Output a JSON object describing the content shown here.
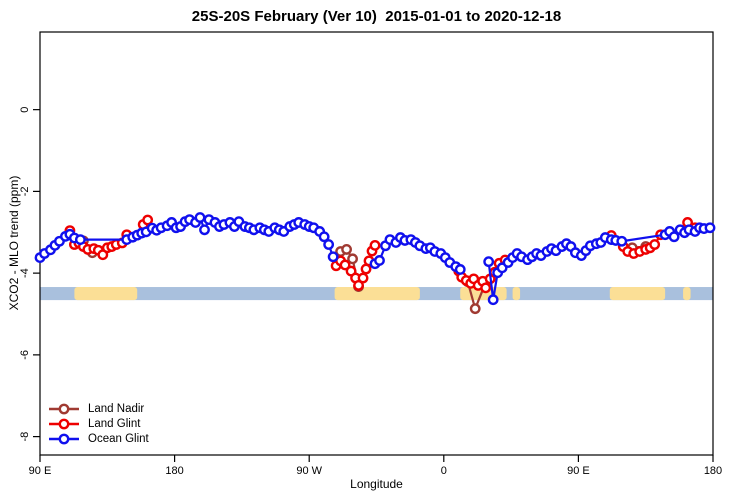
{
  "title": "25S-20S February (Ver 10)  2015-01-01 to 2020-12-18",
  "chart_data": {
    "type": "line",
    "title": "25S-20S February (Ver 10)  2015-01-01 to 2020-12-18",
    "xlabel": "Longitude",
    "ylabel": "XCO2 - MLO trend (ppm)",
    "grid": false,
    "legend_position": "bottom-left",
    "x_axis": {
      "range_deg": [
        0,
        450
      ],
      "ticks_deg": [
        0,
        90,
        180,
        270,
        360,
        450
      ],
      "tick_labels": [
        "90 E",
        "180",
        "90 W",
        "0",
        "90 E",
        "180"
      ],
      "note": "longitude axis starts at 90E and wraps eastward through 180, 90W, 0, 90E to 180"
    },
    "y_axis": {
      "range": [
        -8.45,
        1.9
      ],
      "ticks": [
        0,
        -2,
        -4,
        -6,
        -8
      ],
      "tick_labels": [
        "0",
        "-2",
        "-4",
        "-6",
        "-8"
      ]
    },
    "surface_band": {
      "y_top": -4.34,
      "y_bottom": -4.66,
      "ocean_color": "#a9c0dd",
      "land_color": "#fbdf96",
      "land_patches_deg": [
        [
          23,
          65
        ],
        [
          197,
          254
        ],
        [
          281,
          312
        ],
        [
          316,
          321
        ],
        [
          381,
          418
        ],
        [
          430,
          435
        ]
      ]
    },
    "series": [
      {
        "name": "Land Nadir",
        "color": "#a03a32",
        "segments": [
          [
            [
              29,
              -3.21
            ],
            [
              35,
              -3.5
            ]
          ],
          [
            [
              201,
              -3.47
            ],
            [
              205,
              -3.42
            ],
            [
              209,
              -3.65
            ],
            [
              213,
              -4.33
            ]
          ],
          [
            [
              286,
              -4.21
            ],
            [
              291,
              -4.87
            ],
            [
              298,
              -4.23
            ]
          ],
          [
            [
              396,
              -3.38
            ],
            [
              405,
              -3.35
            ]
          ]
        ]
      },
      {
        "name": "Land Glint",
        "color": "#ee0000",
        "segments": [
          [
            [
              20,
              -2.96
            ],
            [
              23,
              -3.3
            ],
            [
              26,
              -3.26
            ],
            [
              29,
              -3.35
            ],
            [
              32,
              -3.42
            ],
            [
              36,
              -3.4
            ],
            [
              39,
              -3.44
            ],
            [
              42,
              -3.55
            ],
            [
              45,
              -3.38
            ],
            [
              48,
              -3.35
            ],
            [
              51,
              -3.3
            ],
            [
              55,
              -3.26
            ],
            [
              58,
              -3.06
            ]
          ],
          [
            [
              69,
              -2.81
            ],
            [
              72,
              -2.7
            ]
          ],
          [
            [
              198,
              -3.82
            ],
            [
              201,
              -3.7
            ],
            [
              204,
              -3.8
            ],
            [
              208,
              -3.95
            ],
            [
              211,
              -4.12
            ],
            [
              213,
              -4.3
            ],
            [
              216,
              -4.12
            ],
            [
              218,
              -3.9
            ],
            [
              220,
              -3.7
            ],
            [
              222,
              -3.46
            ],
            [
              224,
              -3.32
            ]
          ],
          [
            [
              280,
              -3.95
            ],
            [
              282,
              -4.1
            ],
            [
              285,
              -4.18
            ],
            [
              288,
              -4.25
            ],
            [
              290,
              -4.14
            ],
            [
              293,
              -4.3
            ],
            [
              296,
              -4.2
            ],
            [
              298,
              -4.36
            ],
            [
              301,
              -4.14
            ],
            [
              304,
              -3.98
            ],
            [
              307,
              -3.76
            ],
            [
              311,
              -3.68
            ]
          ],
          [
            [
              382,
              -3.08
            ],
            [
              390,
              -3.35
            ],
            [
              393,
              -3.47
            ],
            [
              397,
              -3.52
            ],
            [
              401,
              -3.47
            ],
            [
              405,
              -3.42
            ],
            [
              408,
              -3.38
            ],
            [
              411,
              -3.3
            ],
            [
              415,
              -3.06
            ]
          ],
          [
            [
              433,
              -2.76
            ],
            [
              438,
              -2.89
            ]
          ]
        ]
      },
      {
        "name": "Ocean Glint",
        "color": "#1010ee",
        "segments": [
          [
            [
              0,
              -3.62
            ],
            [
              3,
              -3.52
            ],
            [
              7,
              -3.43
            ],
            [
              10,
              -3.32
            ],
            [
              13,
              -3.22
            ],
            [
              17,
              -3.1
            ],
            [
              20,
              -3.05
            ],
            [
              23,
              -3.14
            ],
            [
              27,
              -3.18
            ],
            [
              58,
              -3.18
            ],
            [
              62,
              -3.12
            ],
            [
              65,
              -3.07
            ],
            [
              68,
              -3.02
            ],
            [
              71,
              -2.99
            ],
            [
              75,
              -2.9
            ],
            [
              78,
              -2.95
            ],
            [
              81,
              -2.89
            ],
            [
              85,
              -2.84
            ],
            [
              88,
              -2.76
            ],
            [
              91,
              -2.89
            ],
            [
              94,
              -2.86
            ],
            [
              97,
              -2.74
            ],
            [
              100,
              -2.69
            ],
            [
              104,
              -2.76
            ],
            [
              107,
              -2.64
            ],
            [
              110,
              -2.94
            ],
            [
              113,
              -2.69
            ],
            [
              117,
              -2.76
            ],
            [
              120,
              -2.86
            ],
            [
              123,
              -2.81
            ],
            [
              127,
              -2.76
            ],
            [
              130,
              -2.86
            ],
            [
              133,
              -2.74
            ],
            [
              137,
              -2.86
            ],
            [
              140,
              -2.89
            ],
            [
              143,
              -2.94
            ],
            [
              147,
              -2.89
            ],
            [
              150,
              -2.94
            ],
            [
              153,
              -2.98
            ],
            [
              157,
              -2.89
            ],
            [
              160,
              -2.94
            ],
            [
              163,
              -2.98
            ],
            [
              167,
              -2.86
            ],
            [
              170,
              -2.81
            ],
            [
              173,
              -2.76
            ],
            [
              177,
              -2.81
            ],
            [
              180,
              -2.86
            ],
            [
              183,
              -2.89
            ],
            [
              187,
              -2.98
            ],
            [
              190,
              -3.11
            ],
            [
              193,
              -3.3
            ],
            [
              196,
              -3.6
            ]
          ],
          [
            [
              224,
              -3.77
            ],
            [
              227,
              -3.69
            ],
            [
              231,
              -3.33
            ],
            [
              234,
              -3.18
            ],
            [
              238,
              -3.25
            ],
            [
              241,
              -3.13
            ],
            [
              244,
              -3.2
            ],
            [
              248,
              -3.18
            ],
            [
              251,
              -3.25
            ],
            [
              254,
              -3.33
            ],
            [
              258,
              -3.4
            ],
            [
              261,
              -3.38
            ],
            [
              264,
              -3.47
            ],
            [
              268,
              -3.52
            ],
            [
              271,
              -3.62
            ],
            [
              274,
              -3.74
            ],
            [
              278,
              -3.84
            ],
            [
              281,
              -3.91
            ]
          ],
          [
            [
              300,
              -3.72
            ],
            [
              303,
              -4.65
            ],
            [
              306,
              -3.99
            ],
            [
              309,
              -3.87
            ],
            [
              313,
              -3.74
            ],
            [
              316,
              -3.62
            ],
            [
              319,
              -3.52
            ],
            [
              322,
              -3.6
            ],
            [
              326,
              -3.67
            ],
            [
              329,
              -3.6
            ],
            [
              332,
              -3.52
            ],
            [
              335,
              -3.57
            ],
            [
              339,
              -3.47
            ],
            [
              342,
              -3.4
            ],
            [
              345,
              -3.45
            ],
            [
              349,
              -3.35
            ],
            [
              352,
              -3.28
            ],
            [
              355,
              -3.35
            ],
            [
              358,
              -3.5
            ],
            [
              362,
              -3.57
            ],
            [
              365,
              -3.45
            ],
            [
              368,
              -3.33
            ],
            [
              372,
              -3.28
            ],
            [
              375,
              -3.25
            ],
            [
              378,
              -3.13
            ],
            [
              382,
              -3.18
            ],
            [
              385,
              -3.2
            ],
            [
              389,
              -3.22
            ],
            [
              418,
              -3.06
            ],
            [
              421,
              -2.98
            ],
            [
              424,
              -3.11
            ],
            [
              428,
              -2.94
            ],
            [
              431,
              -3.01
            ],
            [
              434,
              -2.94
            ],
            [
              438,
              -2.98
            ],
            [
              441,
              -2.89
            ],
            [
              444,
              -2.91
            ],
            [
              448,
              -2.89
            ]
          ]
        ]
      }
    ],
    "legend": [
      "Land Nadir",
      "Land Glint",
      "Ocean Glint"
    ]
  }
}
